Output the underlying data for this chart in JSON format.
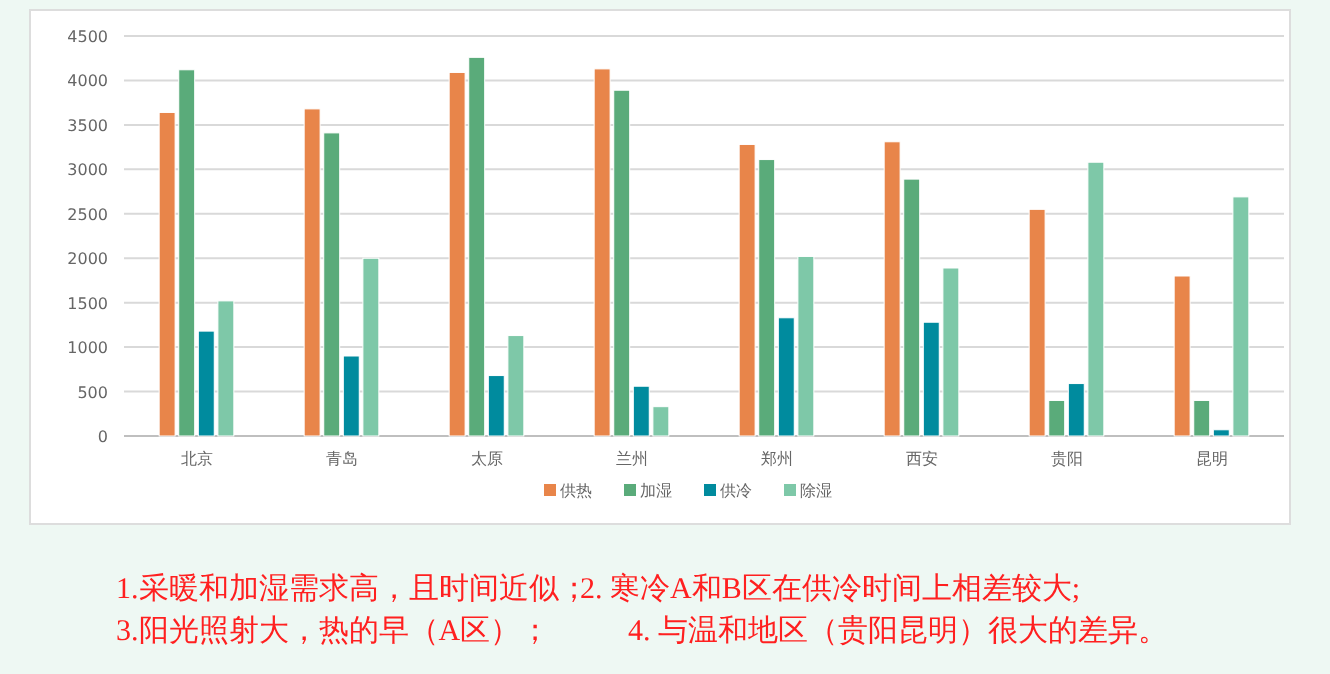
{
  "chart_data": {
    "type": "bar",
    "categories": [
      "北京",
      "青岛",
      "太原",
      "兰州",
      "郑州",
      "西安",
      "贵阳",
      "昆明"
    ],
    "series": [
      {
        "name": "供热",
        "color": "#e8854a",
        "values": [
          3640,
          3680,
          4090,
          4130,
          3280,
          3310,
          2550,
          1800
        ]
      },
      {
        "name": "加湿",
        "color": "#5aab7a",
        "values": [
          4120,
          3410,
          4260,
          3890,
          3110,
          2890,
          400,
          400
        ]
      },
      {
        "name": "供冷",
        "color": "#008b9e",
        "values": [
          1180,
          900,
          680,
          560,
          1330,
          1280,
          590,
          70
        ]
      },
      {
        "name": "除湿",
        "color": "#7ec8a8",
        "values": [
          1520,
          2000,
          1130,
          330,
          2020,
          1890,
          3080,
          2690
        ]
      }
    ],
    "ylim": [
      0,
      4500
    ],
    "yticks": [
      0,
      500,
      1000,
      1500,
      2000,
      2500,
      3000,
      3500,
      4000,
      4500
    ],
    "grid": "y",
    "legend": "bottom",
    "annotations": [
      "1.采暖和加湿需求高，且时间近似；",
      "2. 寒冷A和B区在供冷时间上相差较大;",
      "3.阳光照射大，热的早（A区）；",
      "4. 与温和地区（贵阳昆明）很大的差异。"
    ]
  }
}
